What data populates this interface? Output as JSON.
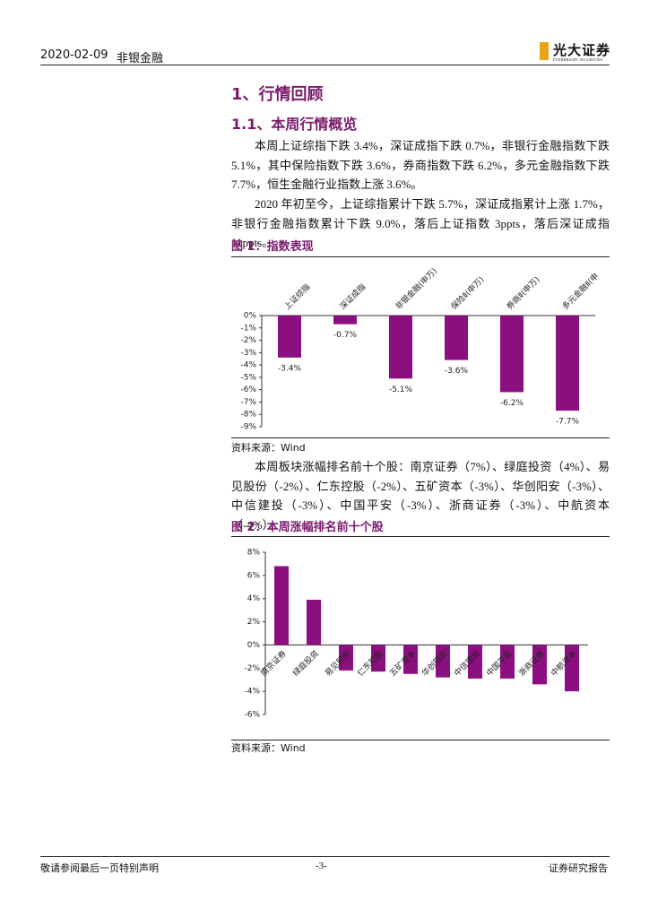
{
  "header": {
    "date": "2020-02-09",
    "sector": "非银金融",
    "logo": "光大证券",
    "logo_en": "EVERBRIGHT SECURITIES"
  },
  "section_title": "1、行情回顾",
  "subsection_title": "1.1、本周行情概览",
  "paragraphs": [
    "本周上证综指下跌 3.4%，深证成指下跌 0.7%，非银行金融指数下跌 5.1%，其中保险指数下跌 3.6%，券商指数下跌 6.2%，多元金融指数下跌 7.7%，恒生金融行业指数上涨 3.6%。",
    "2020 年初至今，上证综指累计下跌 5.7%，深证成指累计上涨 1.7%，非银行金融指数累计下跌 9.0%，落后上证指数 3ppts，落后深证成指 11ppts。",
    "本周板块涨幅排名前十个股：南京证券（7%）、绿庭投资（4%）、易见股份（-2%）、仁东控股（-2%）、五矿资本（-3%）、华创阳安（-3%）、中信建投（-3%）、中国平安（-3%）、浙商证券（-3%）、中航资本（-4%）。"
  ],
  "figures": [
    {
      "title": "图 1：指数表现",
      "source": "资料来源：Wind",
      "chart": {
        "type": "bar",
        "color": "#8b0f7e",
        "categories": [
          "上证综指",
          "深证成指",
          "非银金融(申万)",
          "保险Ⅱ(申万)",
          "券商Ⅱ(申万)",
          "多元金融Ⅱ(申"
        ],
        "values": [
          -3.4,
          -0.7,
          -5.1,
          -3.6,
          -6.2,
          -7.7
        ],
        "value_labels": [
          "-3.4%",
          "-0.7%",
          "-5.1%",
          "-3.6%",
          "-6.2%",
          "-7.7%"
        ],
        "ylim": [
          -9,
          0
        ],
        "yticks": [
          {
            "value": 0,
            "label": "0%"
          },
          {
            "value": -1,
            "label": "-1%"
          },
          {
            "value": -2,
            "label": "-2%"
          },
          {
            "value": -3,
            "label": "-3%"
          },
          {
            "value": -4,
            "label": "-4%"
          },
          {
            "value": -5,
            "label": "-5%"
          },
          {
            "value": -6,
            "label": "-6%"
          },
          {
            "value": -7,
            "label": "-7%"
          },
          {
            "value": -8,
            "label": "-8%"
          },
          {
            "value": -9,
            "label": "-9%"
          }
        ]
      }
    },
    {
      "title": "图 2：本周涨幅排名前十个股",
      "source": "资料来源：Wind",
      "chart": {
        "type": "bar",
        "color": "#8b0f7e",
        "categories": [
          "南京证券",
          "绿庭投资",
          "易见股份",
          "仁东控股",
          "五矿资本",
          "华创阳安",
          "中信建投",
          "中国平安",
          "浙商证券",
          "中航资本"
        ],
        "values": [
          6.8,
          3.9,
          -2.2,
          -2.3,
          -2.5,
          -2.8,
          -2.9,
          -2.9,
          -3.4,
          -4.0
        ],
        "ylim": [
          -6,
          8
        ],
        "yticks": [
          {
            "value": 8,
            "label": "8%"
          },
          {
            "value": 6,
            "label": "6%"
          },
          {
            "value": 4,
            "label": "4%"
          },
          {
            "value": 2,
            "label": "2%"
          },
          {
            "value": 0,
            "label": "0%"
          },
          {
            "value": -2,
            "label": "-2%"
          },
          {
            "value": -4,
            "label": "-4%"
          },
          {
            "value": -6,
            "label": "-6%"
          }
        ]
      }
    }
  ],
  "footer": {
    "disclaimer": "敬请参阅最后一页特别声明",
    "page": "-3-",
    "report_type": "证券研究报告"
  }
}
